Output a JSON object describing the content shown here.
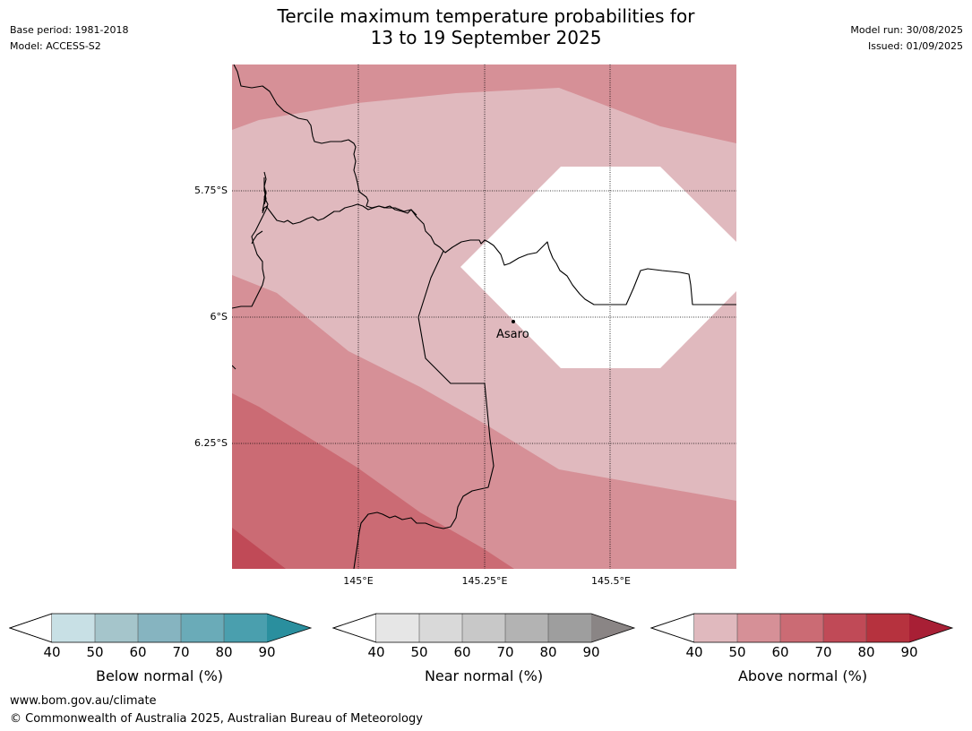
{
  "title_line1": "Tercile maximum temperature probabilities for",
  "title_line2": "13 to 19 September 2025",
  "meta": {
    "base_period": "Base period: 1981-2018",
    "model": "Model: ACCESS-S2",
    "model_run": "Model run: 30/08/2025",
    "issued": "Issued: 01/09/2025"
  },
  "map": {
    "lat_ticks": [
      "5.75°S",
      "6°S",
      "6.25°S"
    ],
    "lon_ticks": [
      "145°E",
      "145.25°E",
      "145.5°E"
    ],
    "place_label": "Asaro",
    "colors": {
      "above_40_50": "#e0b9be",
      "above_50_60": "#d69097",
      "above_60_70": "#cb6b74",
      "above_70_80": "#c04a57",
      "no_dominant": "#ffffff"
    }
  },
  "colorbars": {
    "ticks": [
      "40",
      "50",
      "60",
      "70",
      "80",
      "90"
    ],
    "below": {
      "title": "Below normal (%)",
      "colors": [
        "#c8e0e5",
        "#a5c5cb",
        "#86b4c0",
        "#6aabb8",
        "#4a9fae",
        "#2a8f9e"
      ]
    },
    "near": {
      "title": "Near normal (%)",
      "colors": [
        "#e6e6e6",
        "#d9d9d9",
        "#c8c8c8",
        "#b3b3b3",
        "#9e9e9e",
        "#8a8585"
      ]
    },
    "above": {
      "title": "Above normal (%)",
      "colors": [
        "#e0b9be",
        "#d69097",
        "#cb6b74",
        "#c04a57",
        "#b6323e",
        "#a81f35"
      ]
    }
  },
  "footer": {
    "url": "www.bom.gov.au/climate",
    "copyright": "© Commonwealth of Australia 2025, Australian Bureau of Meteorology"
  }
}
